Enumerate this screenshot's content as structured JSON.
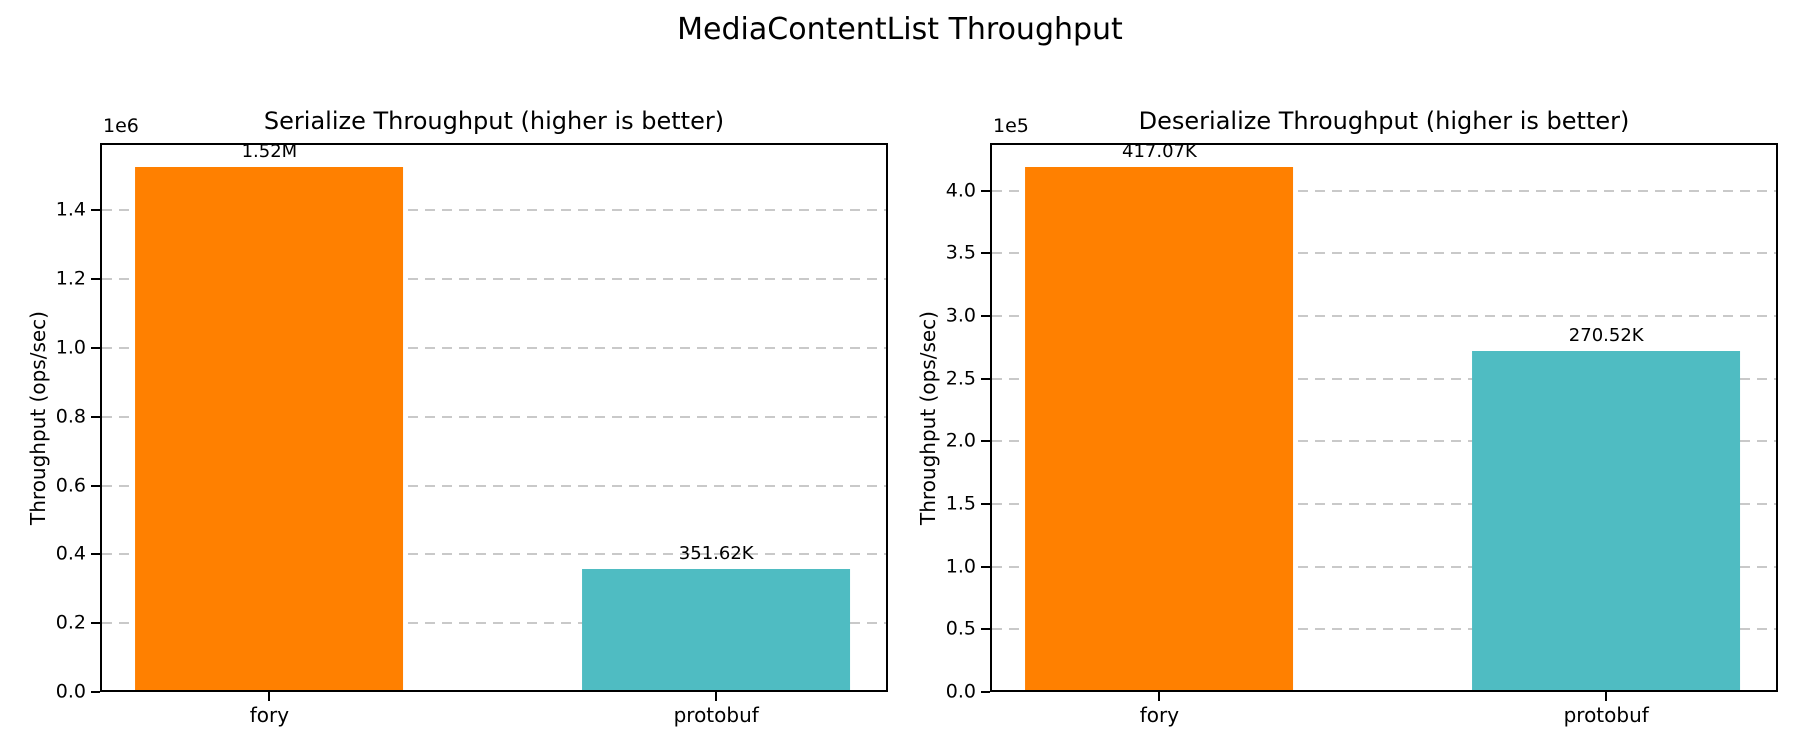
{
  "figure": {
    "suptitle": "MediaContentList Throughput",
    "background": "#ffffff"
  },
  "colors": {
    "fory_bar": "#ff8000",
    "protobuf_bar": "#4fbcc2",
    "gridline": "#c9c9c9",
    "spine": "#000000",
    "text": "#000000"
  },
  "chart_data": [
    {
      "type": "bar",
      "title": "Serialize Throughput (higher is better)",
      "categories": [
        "fory",
        "protobuf"
      ],
      "values": [
        1520000,
        351620
      ],
      "bar_labels": [
        "1.52M",
        "351.62K"
      ],
      "bar_colors": [
        "#ff8000",
        "#4fbcc2"
      ],
      "xlabel": "",
      "ylabel": "Throughput (ops/sec)",
      "offset_text": "1e6",
      "ylim": [
        0,
        1596000
      ],
      "yticks_abs": [
        0,
        200000,
        400000,
        600000,
        800000,
        1000000,
        1200000,
        1400000
      ],
      "ytick_labels": [
        "0.0",
        "0.2",
        "0.4",
        "0.6",
        "0.8",
        "1.0",
        "1.2",
        "1.4"
      ],
      "grid": "horizontal dashed, below bars",
      "legend": "none"
    },
    {
      "type": "bar",
      "title": "Deserialize Throughput (higher is better)",
      "categories": [
        "fory",
        "protobuf"
      ],
      "values": [
        417070,
        270520
      ],
      "bar_labels": [
        "417.07K",
        "270.52K"
      ],
      "bar_colors": [
        "#ff8000",
        "#4fbcc2"
      ],
      "xlabel": "",
      "ylabel": "Throughput (ops/sec)",
      "offset_text": "1e5",
      "ylim": [
        0,
        437924
      ],
      "yticks_abs": [
        0,
        50000,
        100000,
        150000,
        200000,
        250000,
        300000,
        350000,
        400000
      ],
      "ytick_labels": [
        "0.0",
        "0.5",
        "1.0",
        "1.5",
        "2.0",
        "2.5",
        "3.0",
        "3.5",
        "4.0"
      ],
      "grid": "horizontal dashed, below bars",
      "legend": "none"
    }
  ]
}
